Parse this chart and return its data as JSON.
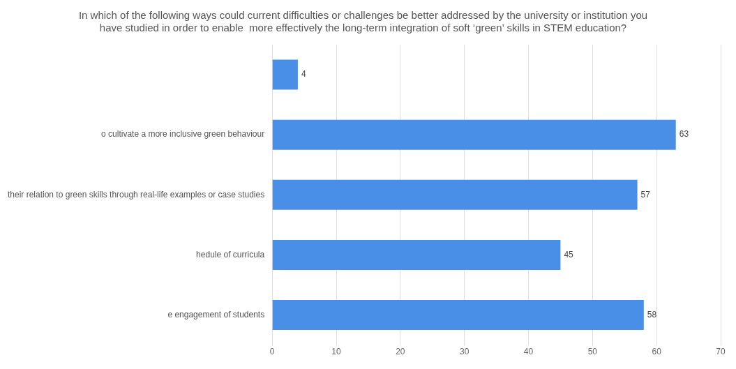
{
  "chart_data": {
    "type": "bar",
    "orientation": "horizontal",
    "title": "In which of the following ways could current difficulties or challenges be better addressed by the university or institution you have studied in order to enable  more effectively the long-term integration of soft ‘green’ skills in STEM education?",
    "categories": [
      null,
      "o cultivate a more inclusive green behaviour",
      "their relation to green skills through real-life examples or case studies",
      "hedule of curricula",
      "e engagement of students"
    ],
    "values": [
      4,
      63,
      57,
      45,
      58
    ],
    "color": "#4a8fe7",
    "xlim": [
      0,
      70
    ],
    "xticks": [
      0,
      10,
      20,
      30,
      40,
      50,
      60,
      70
    ],
    "grid": "x",
    "legend": false,
    "data_labels": true
  }
}
